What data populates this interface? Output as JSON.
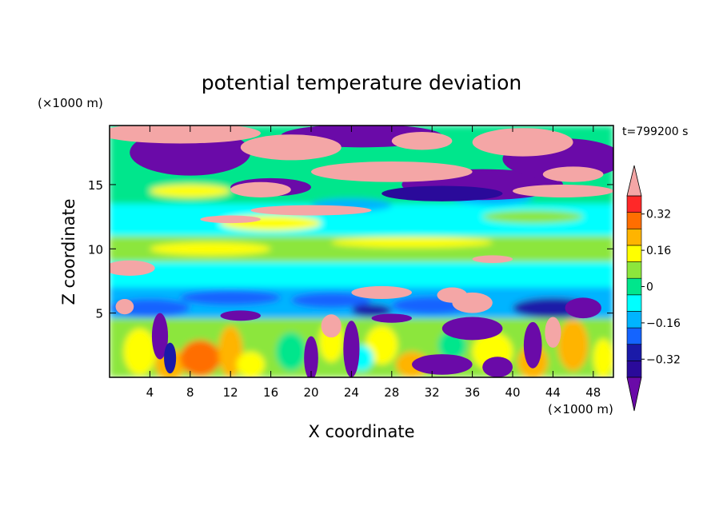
{
  "chart_data": {
    "type": "heatmap",
    "title": "potential temperature deviation",
    "xlabel": "X coordinate",
    "ylabel": "Z coordinate",
    "x_unit": "(×1000 m)",
    "y_unit": "(×1000 m)",
    "time_label": "t=799200 s",
    "xlim": [
      0,
      50
    ],
    "ylim": [
      0,
      19.6
    ],
    "x_ticks": [
      4,
      8,
      12,
      16,
      20,
      24,
      28,
      32,
      36,
      40,
      44,
      48
    ],
    "y_ticks": [
      5,
      10,
      15
    ],
    "colorbar": {
      "labels": [
        "0.32",
        "0.16",
        "0",
        "−0.16",
        "−0.32"
      ],
      "label_values": [
        0.32,
        0.16,
        0,
        -0.16,
        -0.32
      ],
      "levels": [
        -0.4,
        -0.32,
        -0.24,
        -0.16,
        -0.08,
        0,
        0.08,
        0.16,
        0.24,
        0.32,
        0.4
      ],
      "colors": [
        "#2a0a9a",
        "#1a1aa8",
        "#1464ff",
        "#00b4ff",
        "#00ffff",
        "#00e68c",
        "#8ce63c",
        "#ffff00",
        "#ffb400",
        "#ff6e00",
        "#ff2828"
      ],
      "under_color": "#6a0aa8",
      "over_color": "#f4a6a6"
    }
  }
}
